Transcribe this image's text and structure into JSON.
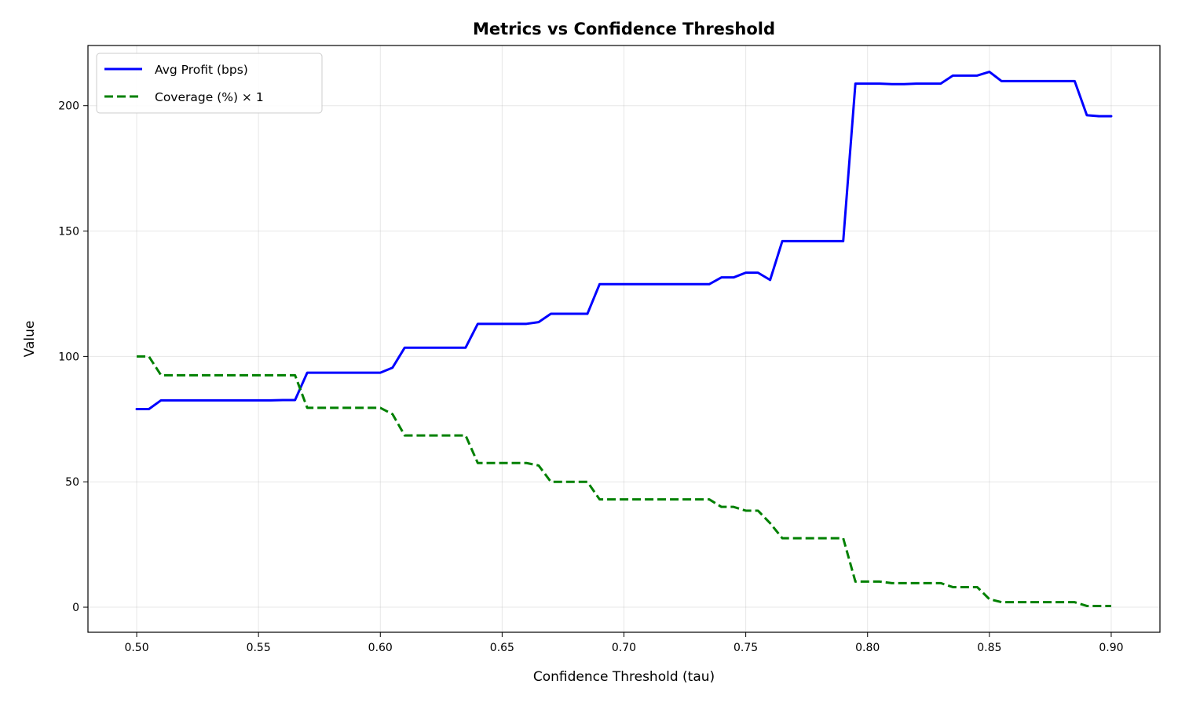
{
  "chart_data": {
    "type": "line",
    "title": "Metrics vs Confidence Threshold",
    "xlabel": "Confidence Threshold (tau)",
    "ylabel": "Value",
    "xlim": [
      0.48,
      0.92
    ],
    "ylim": [
      -10,
      224
    ],
    "xticks": [
      0.5,
      0.55,
      0.6,
      0.65,
      0.7,
      0.75,
      0.8,
      0.85,
      0.9
    ],
    "xtick_labels": [
      "0.50",
      "0.55",
      "0.60",
      "0.65",
      "0.70",
      "0.75",
      "0.80",
      "0.85",
      "0.90"
    ],
    "yticks": [
      0,
      50,
      100,
      150,
      200
    ],
    "ytick_labels": [
      "0",
      "50",
      "100",
      "150",
      "200"
    ],
    "grid": true,
    "legend_position": "top-left",
    "x": [
      0.5,
      0.505,
      0.51,
      0.515,
      0.52,
      0.525,
      0.53,
      0.535,
      0.54,
      0.545,
      0.55,
      0.555,
      0.56,
      0.565,
      0.57,
      0.575,
      0.58,
      0.585,
      0.59,
      0.595,
      0.6,
      0.605,
      0.61,
      0.615,
      0.62,
      0.625,
      0.63,
      0.635,
      0.64,
      0.645,
      0.65,
      0.655,
      0.66,
      0.665,
      0.67,
      0.675,
      0.68,
      0.685,
      0.69,
      0.695,
      0.7,
      0.705,
      0.71,
      0.715,
      0.72,
      0.725,
      0.73,
      0.735,
      0.74,
      0.745,
      0.75,
      0.755,
      0.76,
      0.765,
      0.77,
      0.775,
      0.78,
      0.785,
      0.79,
      0.795,
      0.8,
      0.805,
      0.81,
      0.815,
      0.82,
      0.825,
      0.83,
      0.835,
      0.84,
      0.845,
      0.85,
      0.855,
      0.86,
      0.865,
      0.87,
      0.875,
      0.88,
      0.885,
      0.89,
      0.895,
      0.9
    ],
    "series": [
      {
        "name": "Avg Profit (bps)",
        "color": "#0000ff",
        "style": "solid",
        "values": [
          79,
          79,
          82.5,
          82.5,
          82.5,
          82.5,
          82.5,
          82.5,
          82.5,
          82.5,
          82.5,
          82.5,
          82.6,
          82.6,
          93.5,
          93.5,
          93.5,
          93.5,
          93.5,
          93.5,
          93.5,
          95.5,
          103.5,
          103.5,
          103.5,
          103.5,
          103.5,
          103.5,
          113,
          113,
          113,
          113,
          113,
          113.7,
          117,
          117,
          117,
          117,
          128.8,
          128.8,
          128.8,
          128.8,
          128.8,
          128.8,
          128.8,
          128.8,
          128.8,
          128.8,
          131.5,
          131.5,
          133.4,
          133.4,
          130.5,
          146,
          146,
          146,
          146,
          146,
          146,
          208.8,
          208.8,
          208.8,
          208.6,
          208.6,
          208.8,
          208.8,
          208.8,
          212,
          212,
          212,
          213.5,
          209.8,
          209.8,
          209.8,
          209.8,
          209.8,
          209.8,
          209.8,
          196.2,
          195.8,
          195.8
        ]
      },
      {
        "name": "Coverage (%) × 1",
        "color": "#008000",
        "style": "dashed",
        "values": [
          100,
          100,
          92.5,
          92.5,
          92.5,
          92.5,
          92.5,
          92.5,
          92.5,
          92.5,
          92.5,
          92.5,
          92.5,
          92.5,
          79.5,
          79.5,
          79.5,
          79.5,
          79.5,
          79.5,
          79.5,
          77,
          68.5,
          68.5,
          68.5,
          68.5,
          68.5,
          68.5,
          57.5,
          57.5,
          57.5,
          57.5,
          57.5,
          56.5,
          50,
          50,
          50,
          50,
          43,
          43,
          43,
          43,
          43,
          43,
          43,
          43,
          43,
          43,
          40,
          40,
          38.5,
          38.5,
          33.5,
          27.5,
          27.5,
          27.5,
          27.5,
          27.5,
          27.5,
          10.2,
          10.2,
          10.2,
          9.6,
          9.6,
          9.6,
          9.6,
          9.6,
          8,
          8,
          8,
          3.2,
          2,
          2,
          2,
          2,
          2,
          2,
          2,
          0.5,
          0.5,
          0.5
        ]
      }
    ]
  }
}
